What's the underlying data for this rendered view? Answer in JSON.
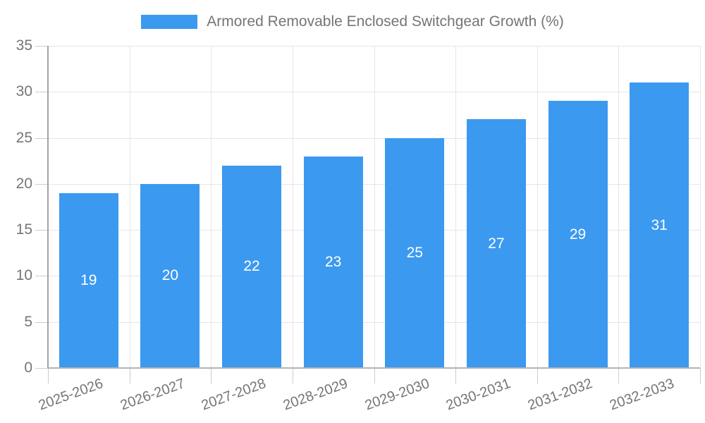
{
  "chart_data": {
    "type": "bar",
    "title": "",
    "legend": {
      "label": "Armored Removable Enclosed Switchgear Growth (%)",
      "position": "top"
    },
    "categories": [
      "2025-2026",
      "2026-2027",
      "2027-2028",
      "2028-2029",
      "2029-2030",
      "2030-2031",
      "2031-2032",
      "2032-2033"
    ],
    "values": [
      19,
      20,
      22,
      23,
      25,
      27,
      29,
      31
    ],
    "bar_value_labels": [
      "19",
      "20",
      "22",
      "23",
      "25",
      "27",
      "29",
      "31"
    ],
    "xlabel": "",
    "ylabel": "",
    "ylim": [
      0,
      35
    ],
    "y_ticks": [
      0,
      5,
      10,
      15,
      20,
      25,
      30,
      35
    ],
    "grid": true,
    "legend_position": "top-center",
    "colors": {
      "bar": "#3b99f0",
      "bar_label": "#ffffff",
      "axis_text": "#757575",
      "gridline": "#e6e6e6",
      "y_axis_line": "#a3a3a3",
      "x_axis_line": "#b3b3b3",
      "tick": "#cccccc",
      "background": "#ffffff"
    }
  }
}
